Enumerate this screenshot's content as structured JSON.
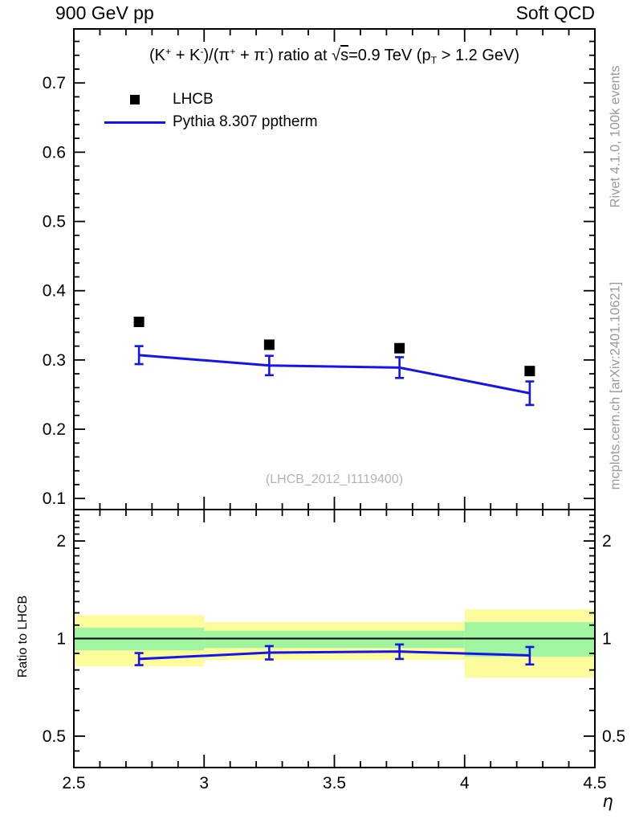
{
  "header": {
    "left_label": "900 GeV pp",
    "right_label": "Soft QCD"
  },
  "right_margin": {
    "top_text": "Rivet 4.1.0,  100k events",
    "bottom_text": "mcplots.cern.ch [arXiv:2401.10621]",
    "color": "#9a9a9a"
  },
  "watermark": {
    "text": "(LHCB_2012_I1119400)",
    "color": "#b3b3b3"
  },
  "main_panel": {
    "title_segments": [
      {
        "t": "(K"
      },
      {
        "t": "+",
        "style": "sup"
      },
      {
        "t": " + K"
      },
      {
        "t": "-",
        "style": "sup"
      },
      {
        "t": ")/("
      },
      {
        "t": "π"
      },
      {
        "t": "+",
        "style": "sup"
      },
      {
        "t": " + π"
      },
      {
        "t": "-",
        "style": "sup"
      },
      {
        "t": ") ratio at "
      },
      {
        "t": "√"
      },
      {
        "t": "s",
        "style": "overline"
      },
      {
        "t": "=0.9 TeV (p"
      },
      {
        "t": "T",
        "style": "sub"
      },
      {
        "t": " > 1.2 GeV)"
      }
    ]
  },
  "legend": {
    "items": [
      {
        "label": "LHCB",
        "marker": "square",
        "color": "#000000"
      },
      {
        "label": "Pythia 8.307 pptherm",
        "marker": "line",
        "color": "#1414ee"
      }
    ]
  },
  "colors": {
    "blue": "#1414ee",
    "yellow": "#fcfc9c",
    "green": "#a0f6a0",
    "frame": "#000000",
    "unity_line": "#000000",
    "tick_label": "#000000"
  },
  "chart_data": [
    {
      "type": "line",
      "title": "(K+ + K-)/(π+ + π-) ratio at √s=0.9 TeV (pT > 1.2 GeV)",
      "xlabel": "η",
      "ylabel": "",
      "xlim": [
        2.5,
        4.5
      ],
      "ylim": [
        0.084,
        0.778
      ],
      "xticks": [
        2.5,
        3,
        3.5,
        4,
        4.5
      ],
      "xtick_labels": [
        "2.5",
        "3",
        "3.5",
        "4",
        "4.5"
      ],
      "minor_xtick_step": 0.1,
      "yticks": [
        0.1,
        0.2,
        0.3,
        0.4,
        0.5,
        0.6,
        0.7
      ],
      "ytick_labels": [
        "0.1",
        "0.2",
        "0.3",
        "0.4",
        "0.5",
        "0.6",
        "0.7"
      ],
      "minor_ytick_step": 0.02,
      "grid": false,
      "legend_position": "top-left",
      "x": [
        2.75,
        3.25,
        3.75,
        4.25
      ],
      "bin_edges": [
        2.5,
        3.0,
        3.5,
        4.0,
        4.5
      ],
      "series": [
        {
          "name": "LHCB",
          "style": "scatter-square",
          "color": "#000000",
          "values": [
            0.355,
            0.322,
            0.317,
            0.284
          ]
        },
        {
          "name": "Pythia 8.307 pptherm",
          "style": "line-errorbar",
          "color": "#1414ee",
          "values": [
            0.307,
            0.292,
            0.289,
            0.252
          ],
          "yerr": [
            0.013,
            0.014,
            0.015,
            0.017
          ]
        }
      ]
    },
    {
      "type": "ratio-line",
      "ylabel": "Ratio to LHCB",
      "yscale": "log",
      "xlim": [
        2.5,
        4.5
      ],
      "ylim": [
        0.4,
        2.5
      ],
      "yticks": [
        0.5,
        1,
        2
      ],
      "ytick_labels": [
        "0.5",
        "1",
        "2"
      ],
      "minor_yticks": [
        0.45,
        0.6,
        0.7,
        0.8,
        0.9,
        1.1,
        1.2,
        1.3,
        1.4,
        1.5,
        1.6,
        1.7,
        1.8,
        1.9,
        2.1,
        2.2,
        2.3,
        2.4
      ],
      "minor_xtick_step": 0.1,
      "unity_line": 1.0,
      "x": [
        2.75,
        3.25,
        3.75,
        4.25
      ],
      "series": [
        {
          "name": "Pythia 8.307 pptherm / LHCB",
          "style": "line-errorbar",
          "color": "#1414ee",
          "values": [
            0.865,
            0.905,
            0.912,
            0.887
          ],
          "yerr": [
            0.037,
            0.043,
            0.047,
            0.055
          ]
        }
      ],
      "bands": [
        {
          "x": [
            2.5,
            3.0
          ],
          "outer": [
            0.82,
            1.18
          ],
          "inner": [
            0.92,
            1.08
          ]
        },
        {
          "x": [
            3.0,
            3.5
          ],
          "outer": [
            0.86,
            1.125
          ],
          "inner": [
            0.935,
            1.056
          ]
        },
        {
          "x": [
            3.5,
            4.0
          ],
          "outer": [
            0.86,
            1.125
          ],
          "inner": [
            0.935,
            1.056
          ]
        },
        {
          "x": [
            4.0,
            4.5
          ],
          "outer": [
            0.757,
            1.23
          ],
          "inner": [
            0.88,
            1.123
          ]
        }
      ]
    }
  ]
}
